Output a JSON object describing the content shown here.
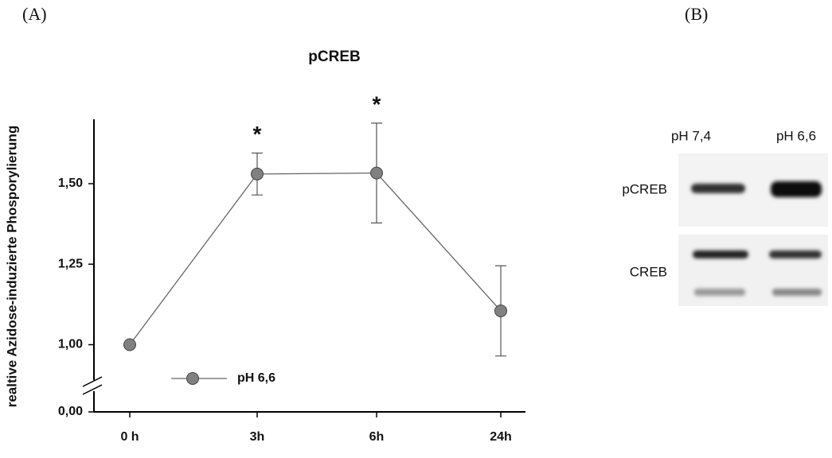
{
  "panel_a_label": "(A)",
  "chart_data": {
    "type": "line",
    "title": "pCREB",
    "ylabel": "realtive Azidose-induzierte Phosporylierung",
    "categories": [
      "0 h",
      "3h",
      "6h",
      "24h"
    ],
    "series": [
      {
        "name": "pH 6,6",
        "color": "#808080",
        "line_color": "#666666",
        "values": [
          1.0,
          1.53,
          1.533,
          1.105
        ],
        "errors": [
          0,
          0.065,
          0.155,
          0.14
        ],
        "value_annotations": [
          null,
          "*",
          "*",
          null
        ]
      }
    ],
    "ylim": [
      0,
      1.7
    ],
    "ybreak": [
      0,
      0.9
    ],
    "yticks": [
      {
        "value": 0,
        "label": "0,00"
      },
      {
        "value": 1.0,
        "label": "1,00"
      },
      {
        "value": 1.25,
        "label": "1,25"
      },
      {
        "value": 1.5,
        "label": "1,50"
      }
    ],
    "grid": false,
    "legend": "bottom-left"
  },
  "panel_b": {
    "label": "(B)",
    "lanes": [
      "pH 7,4",
      "pH 6,6"
    ],
    "rows": [
      "pCREB",
      "CREB"
    ]
  }
}
